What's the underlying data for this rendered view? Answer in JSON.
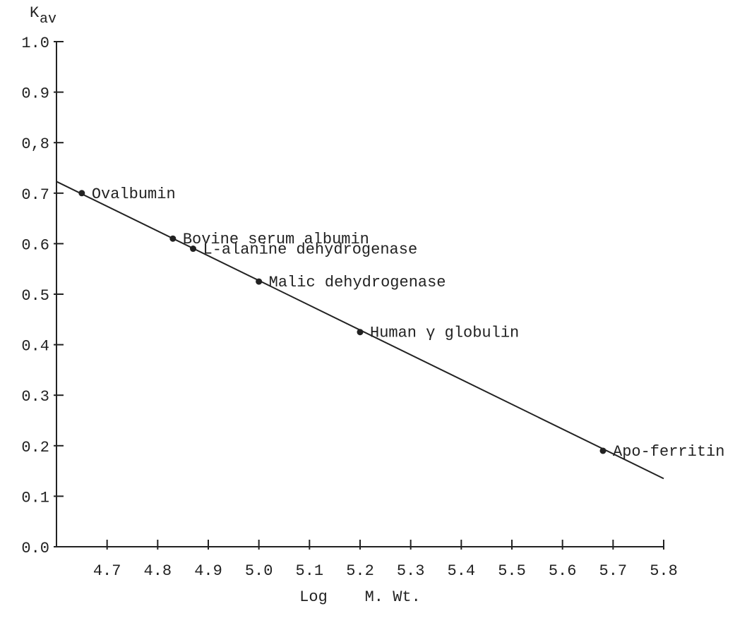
{
  "chart_data": {
    "type": "scatter",
    "title": "",
    "xlabel": "Log    M. Wt.",
    "ylabel_main": "K",
    "ylabel_sub": "av",
    "xlim": [
      4.6,
      5.8
    ],
    "ylim": [
      0.0,
      1.0
    ],
    "x_ticks": [
      4.7,
      4.8,
      4.9,
      5.0,
      5.1,
      5.2,
      5.3,
      5.4,
      5.5,
      5.6,
      5.7,
      5.8
    ],
    "x_tick_labels": [
      "4.7",
      "4.8",
      "4.9",
      "5.0",
      "5.1",
      "5.2",
      "5.3",
      "5.4",
      "5.5",
      "5.6",
      "5.7",
      "5.8"
    ],
    "y_ticks": [
      0.0,
      0.1,
      0.2,
      0.3,
      0.4,
      0.5,
      0.6,
      0.7,
      0.8,
      0.9,
      1.0
    ],
    "y_tick_labels": [
      "0.0",
      "0.1",
      "0.2",
      "0.3",
      "0.4",
      "0.5",
      "0.6",
      "0.7",
      "0,8",
      "0.9",
      "1.0"
    ],
    "grid": false,
    "points": [
      {
        "label": "Ovalbumin",
        "x": 4.65,
        "y": 0.7
      },
      {
        "label": "Bovine serum albumin",
        "x": 4.83,
        "y": 0.61
      },
      {
        "label": "L-alanine dehydrogenase",
        "x": 4.87,
        "y": 0.59
      },
      {
        "label": "Malic dehydrogenase",
        "x": 5.0,
        "y": 0.525
      },
      {
        "label": "Human γ globulin",
        "x": 5.2,
        "y": 0.425
      },
      {
        "label": "Apo-ferritin",
        "x": 5.68,
        "y": 0.19
      }
    ],
    "fit_line": {
      "x": [
        4.6,
        5.8
      ],
      "y": [
        0.723,
        0.135
      ]
    }
  }
}
